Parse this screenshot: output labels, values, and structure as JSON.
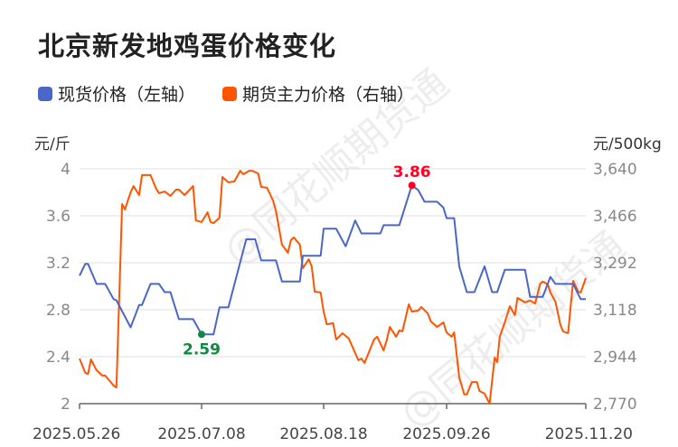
{
  "title": "北京新发地鸡蛋价格变化",
  "watermark": "@同花顺期货通",
  "chart_data": {
    "type": "line",
    "title": "北京新发地鸡蛋价格变化",
    "left_axis": {
      "unit": "元/斤",
      "ylim": [
        2,
        4
      ],
      "ticks": [
        "2",
        "2.4",
        "2.8",
        "3.2",
        "3.6",
        "4"
      ]
    },
    "right_axis": {
      "unit": "元/500kg",
      "ylim": [
        2770,
        3640
      ],
      "ticks": [
        "2,770",
        "2,944",
        "3,118",
        "3,292",
        "3,466",
        "3,640"
      ]
    },
    "x_ticks": [
      "2025.05.26",
      "2025.07.08",
      "2025.08.18",
      "2025.09.26",
      "2025.11.20"
    ],
    "grid": true,
    "legend_position": "top-left",
    "series": [
      {
        "name": "现货价格（左轴）",
        "axis": "left",
        "color": "#4a67c8",
        "points": [
          [
            "2025-05-26",
            3.09
          ],
          [
            "2025-05-28",
            3.19
          ],
          [
            "2025-05-29",
            3.19
          ],
          [
            "2025-06-01",
            3.02
          ],
          [
            "2025-06-04",
            3.02
          ],
          [
            "2025-06-07",
            2.89
          ],
          [
            "2025-06-08",
            2.88
          ],
          [
            "2025-06-13",
            2.65
          ],
          [
            "2025-06-16",
            2.84
          ],
          [
            "2025-06-17",
            2.84
          ],
          [
            "2025-06-20",
            3.02
          ],
          [
            "2025-06-23",
            3.02
          ],
          [
            "2025-06-25",
            2.95
          ],
          [
            "2025-06-27",
            2.95
          ],
          [
            "2025-06-30",
            2.72
          ],
          [
            "2025-07-05",
            2.72
          ],
          [
            "2025-07-08",
            2.59
          ],
          [
            "2025-07-12",
            2.59
          ],
          [
            "2025-07-14",
            2.82
          ],
          [
            "2025-07-17",
            2.82
          ],
          [
            "2025-07-23",
            3.4
          ],
          [
            "2025-07-26",
            3.4
          ],
          [
            "2025-07-28",
            3.22
          ],
          [
            "2025-08-02",
            3.22
          ],
          [
            "2025-08-04",
            3.04
          ],
          [
            "2025-08-10",
            3.04
          ],
          [
            "2025-08-11",
            3.26
          ],
          [
            "2025-08-17",
            3.26
          ],
          [
            "2025-08-18",
            3.49
          ],
          [
            "2025-08-21",
            3.49
          ],
          [
            "2025-08-22",
            3.49
          ],
          [
            "2025-08-25",
            3.34
          ],
          [
            "2025-08-28",
            3.56
          ],
          [
            "2025-08-30",
            3.45
          ],
          [
            "2025-09-05",
            3.45
          ],
          [
            "2025-09-06",
            3.52
          ],
          [
            "2025-09-11",
            3.52
          ],
          [
            "2025-09-15",
            3.86
          ],
          [
            "2025-09-17",
            3.82
          ],
          [
            "2025-09-19",
            3.72
          ],
          [
            "2025-09-23",
            3.72
          ],
          [
            "2025-09-25",
            3.67
          ],
          [
            "2025-09-26",
            3.58
          ],
          [
            "2025-09-29",
            3.58
          ],
          [
            "2025-10-01",
            3.17
          ],
          [
            "2025-10-04",
            2.95
          ],
          [
            "2025-10-07",
            2.95
          ],
          [
            "2025-10-11",
            3.17
          ],
          [
            "2025-10-14",
            2.95
          ],
          [
            "2025-10-16",
            2.95
          ],
          [
            "2025-10-19",
            3.14
          ],
          [
            "2025-10-27",
            3.14
          ],
          [
            "2025-10-29",
            2.91
          ],
          [
            "2025-11-03",
            2.91
          ],
          [
            "2025-11-06",
            3.08
          ],
          [
            "2025-11-08",
            3.02
          ],
          [
            "2025-11-15",
            3.02
          ],
          [
            "2025-11-18",
            2.89
          ],
          [
            "2025-11-20",
            2.89
          ]
        ],
        "annotations": [
          {
            "label": "3.86",
            "date": "2025-09-15",
            "value": 3.86,
            "kind": "max",
            "color": "#ff0022"
          },
          {
            "label": "2.59",
            "date": "2025-07-08",
            "value": 2.59,
            "kind": "min",
            "color": "#0e8a3e"
          }
        ]
      },
      {
        "name": "期货主力价格（右轴）",
        "axis": "right",
        "color": "#ff5500",
        "points": [
          [
            "2025-05-26",
            2937
          ],
          [
            "2025-05-28",
            2884
          ],
          [
            "2025-05-29",
            2880
          ],
          [
            "2025-05-30",
            2934
          ],
          [
            "2025-06-01",
            2894
          ],
          [
            "2025-06-03",
            2874
          ],
          [
            "2025-06-04",
            2874
          ],
          [
            "2025-06-07",
            2837
          ],
          [
            "2025-06-08",
            2830
          ],
          [
            "2025-06-10",
            3510
          ],
          [
            "2025-06-11",
            3489
          ],
          [
            "2025-06-13",
            3553
          ],
          [
            "2025-06-14",
            3576
          ],
          [
            "2025-06-16",
            3543
          ],
          [
            "2025-06-17",
            3617
          ],
          [
            "2025-06-20",
            3617
          ],
          [
            "2025-06-22",
            3566
          ],
          [
            "2025-06-23",
            3550
          ],
          [
            "2025-06-25",
            3556
          ],
          [
            "2025-06-27",
            3540
          ],
          [
            "2025-06-29",
            3563
          ],
          [
            "2025-06-30",
            3563
          ],
          [
            "2025-07-02",
            3543
          ],
          [
            "2025-07-05",
            3576
          ],
          [
            "2025-07-06",
            3449
          ],
          [
            "2025-07-08",
            3443
          ],
          [
            "2025-07-10",
            3479
          ],
          [
            "2025-07-11",
            3443
          ],
          [
            "2025-07-12",
            3439
          ],
          [
            "2025-07-14",
            3459
          ],
          [
            "2025-07-15",
            3610
          ],
          [
            "2025-07-17",
            3590
          ],
          [
            "2025-07-19",
            3593
          ],
          [
            "2025-07-21",
            3633
          ],
          [
            "2025-07-22",
            3620
          ],
          [
            "2025-07-24",
            3633
          ],
          [
            "2025-07-25",
            3633
          ],
          [
            "2025-07-27",
            3623
          ],
          [
            "2025-07-28",
            3573
          ],
          [
            "2025-07-30",
            3570
          ],
          [
            "2025-08-01",
            3523
          ],
          [
            "2025-08-02",
            3483
          ],
          [
            "2025-08-04",
            3359
          ],
          [
            "2025-08-06",
            3329
          ],
          [
            "2025-08-07",
            3376
          ],
          [
            "2025-08-08",
            3386
          ],
          [
            "2025-08-10",
            3359
          ],
          [
            "2025-08-11",
            3272
          ],
          [
            "2025-08-13",
            3305
          ],
          [
            "2025-08-14",
            3279
          ],
          [
            "2025-08-15",
            3185
          ],
          [
            "2025-08-17",
            3182
          ],
          [
            "2025-08-18",
            3111
          ],
          [
            "2025-08-19",
            3064
          ],
          [
            "2025-08-21",
            3068
          ],
          [
            "2025-08-22",
            3008
          ],
          [
            "2025-08-24",
            3031
          ],
          [
            "2025-08-26",
            3011
          ],
          [
            "2025-08-29",
            2931
          ],
          [
            "2025-08-30",
            2937
          ],
          [
            "2025-08-31",
            2921
          ],
          [
            "2025-09-03",
            3008
          ],
          [
            "2025-09-04",
            3018
          ],
          [
            "2025-09-06",
            2967
          ],
          [
            "2025-09-07",
            3004
          ],
          [
            "2025-09-08",
            3054
          ],
          [
            "2025-09-10",
            3018
          ],
          [
            "2025-09-11",
            3041
          ],
          [
            "2025-09-12",
            3038
          ],
          [
            "2025-09-14",
            3138
          ],
          [
            "2025-09-15",
            3111
          ],
          [
            "2025-09-17",
            3115
          ],
          [
            "2025-09-18",
            3128
          ],
          [
            "2025-09-20",
            3105
          ],
          [
            "2025-09-21",
            3075
          ],
          [
            "2025-09-23",
            3054
          ],
          [
            "2025-09-25",
            3071
          ],
          [
            "2025-09-26",
            3034
          ],
          [
            "2025-09-28",
            3018
          ],
          [
            "2025-09-29",
            3034
          ],
          [
            "2025-10-01",
            2867
          ],
          [
            "2025-10-03",
            2804
          ],
          [
            "2025-10-04",
            2804
          ],
          [
            "2025-10-06",
            2850
          ],
          [
            "2025-10-08",
            2850
          ],
          [
            "2025-10-09",
            2817
          ],
          [
            "2025-10-11",
            2807
          ],
          [
            "2025-10-13",
            2770
          ],
          [
            "2025-10-15",
            2941
          ],
          [
            "2025-10-16",
            2924
          ],
          [
            "2025-10-17",
            3018
          ],
          [
            "2025-10-19",
            3071
          ],
          [
            "2025-10-21",
            3131
          ],
          [
            "2025-10-23",
            3098
          ],
          [
            "2025-10-24",
            3162
          ],
          [
            "2025-10-27",
            3145
          ],
          [
            "2025-10-29",
            3152
          ],
          [
            "2025-10-31",
            3141
          ],
          [
            "2025-11-02",
            3215
          ],
          [
            "2025-11-03",
            3222
          ],
          [
            "2025-11-05",
            3212
          ],
          [
            "2025-11-06",
            3182
          ],
          [
            "2025-11-08",
            3148
          ],
          [
            "2025-11-10",
            3061
          ],
          [
            "2025-11-11",
            3038
          ],
          [
            "2025-11-13",
            3031
          ],
          [
            "2025-11-15",
            3225
          ],
          [
            "2025-11-17",
            3185
          ],
          [
            "2025-11-18",
            3182
          ],
          [
            "2025-11-20",
            3235
          ]
        ]
      }
    ]
  }
}
